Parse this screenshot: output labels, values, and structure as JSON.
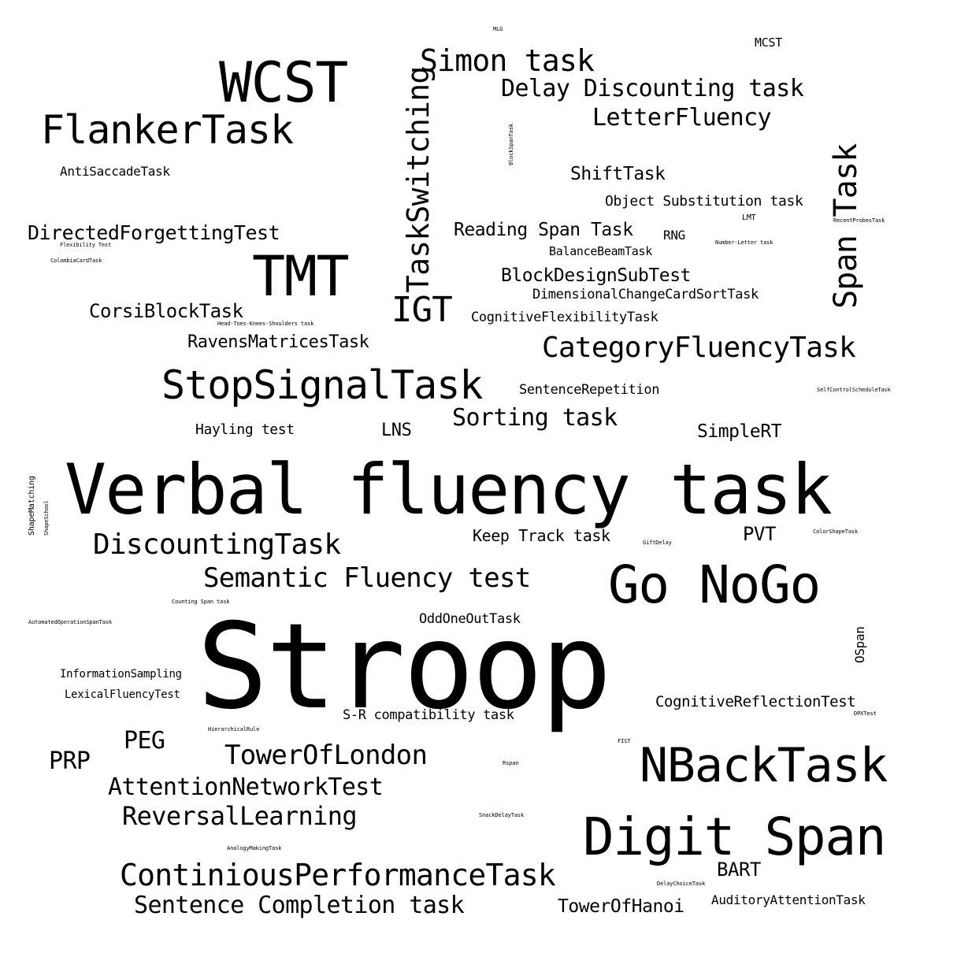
{
  "cloud": {
    "background": "#ffffff",
    "words": [
      {
        "id": "stroop",
        "text": "Stroop"
      },
      {
        "id": "verbal-fluency-task",
        "text": "Verbal fluency task"
      },
      {
        "id": "digit-span",
        "text": "Digit Span"
      },
      {
        "id": "go-nogo",
        "text": "Go NoGo"
      },
      {
        "id": "nbacktask",
        "text": "NBackTask"
      },
      {
        "id": "wcst",
        "text": "WCST"
      },
      {
        "id": "tmt",
        "text": "TMT"
      },
      {
        "id": "flankertask",
        "text": "FlankerTask"
      },
      {
        "id": "stopsignaltask",
        "text": "StopSignalTask"
      },
      {
        "id": "continiousperformancetask",
        "text": "ContiniousPerformanceTask"
      },
      {
        "id": "simon-task",
        "text": "Simon task"
      },
      {
        "id": "taskswitching",
        "text": "TaskSwitching"
      },
      {
        "id": "span-task",
        "text": "Span Task"
      },
      {
        "id": "categoryfluencytask",
        "text": "CategoryFluencyTask"
      },
      {
        "id": "discountingtask",
        "text": "DiscountingTask"
      },
      {
        "id": "igt",
        "text": "IGT"
      },
      {
        "id": "semantic-fluency-test",
        "text": "Semantic Fluency test"
      },
      {
        "id": "toweroflondon",
        "text": "TowerOfLondon"
      },
      {
        "id": "attentionnetworktest",
        "text": "AttentionNetworkTest"
      },
      {
        "id": "reversallearning",
        "text": "ReversalLearning"
      },
      {
        "id": "sentence-completion-task",
        "text": "Sentence Completion task"
      },
      {
        "id": "delay-discounting-task",
        "text": "Delay Discounting task"
      },
      {
        "id": "letterfluency",
        "text": "LetterFluency"
      },
      {
        "id": "sorting-task",
        "text": "Sorting task"
      },
      {
        "id": "peg",
        "text": "PEG"
      },
      {
        "id": "prp",
        "text": "PRP"
      },
      {
        "id": "directedforgettingtest",
        "text": "DirectedForgettingTest"
      },
      {
        "id": "bart",
        "text": "BART"
      },
      {
        "id": "ravensmatricestask",
        "text": "RavensMatricesTask"
      },
      {
        "id": "corsiblocktask",
        "text": "CorsiBlockTask"
      },
      {
        "id": "reading-span-task",
        "text": "Reading Span Task"
      },
      {
        "id": "blockdesignsubtest",
        "text": "BlockDesignSubTest"
      },
      {
        "id": "shifttask",
        "text": "ShiftTask"
      },
      {
        "id": "toweroofhanoi",
        "text": "TowerOfHanoi"
      },
      {
        "id": "simplert",
        "text": "SimpleRT"
      },
      {
        "id": "pvt",
        "text": "PVT"
      },
      {
        "id": "lns",
        "text": "LNS"
      },
      {
        "id": "keep-track-task",
        "text": "Keep Track task"
      },
      {
        "id": "cognitivereflectiontest",
        "text": "CognitiveReflectionTest"
      },
      {
        "id": "object-substitution-task",
        "text": "Object Substitution task"
      },
      {
        "id": "dimensionalchangecardsorttask",
        "text": "DimensionalChangeCardSortTask"
      },
      {
        "id": "cognitiveflexibilitytask",
        "text": "CognitiveFlexibilityTask"
      },
      {
        "id": "sentencerepetition",
        "text": "SentenceRepetition"
      },
      {
        "id": "oddoneouttask",
        "text": "OddOneOutTask"
      },
      {
        "id": "hayling-test",
        "text": "Hayling test"
      },
      {
        "id": "s-r-compatibility-task",
        "text": "S-R compatibility task"
      },
      {
        "id": "auditoryattentiontask",
        "text": "AuditoryAttentionTask"
      },
      {
        "id": "antisaccadetask",
        "text": "AntiSaccadeTask"
      },
      {
        "id": "balancebeamtask",
        "text": "BalanceBeamTask"
      },
      {
        "id": "rng",
        "text": "RNG"
      },
      {
        "id": "informationsampling",
        "text": "InformationSampling"
      },
      {
        "id": "lexicalfluencytest",
        "text": "LexicalFluencyTest"
      },
      {
        "id": "ospan",
        "text": "OSpan"
      },
      {
        "id": "mcst",
        "text": "MCST"
      },
      {
        "id": "lmt",
        "text": "LMT"
      },
      {
        "id": "head-toes-knees-shoulders-task",
        "text": "Head-Toes-Knees-Shoulders task"
      },
      {
        "id": "shapematching",
        "text": "ShapeMatching"
      },
      {
        "id": "shapeschool",
        "text": "ShapeSchool"
      },
      {
        "id": "flexibility-test",
        "text": "Flexibility Test"
      },
      {
        "id": "colombiacardtask",
        "text": "ColombiaCardTask"
      },
      {
        "id": "recentprobestask",
        "text": "RecentProbesTask"
      },
      {
        "id": "number-letter-task",
        "text": "Number-Letter task"
      },
      {
        "id": "selfcontrolschedulefask",
        "text": "SelfControlScheduleTask"
      },
      {
        "id": "blockspantask",
        "text": "BlockSpanTask"
      },
      {
        "id": "colorshapetask",
        "text": "ColorShapeTask"
      },
      {
        "id": "giftdelay",
        "text": "GiftDelay"
      },
      {
        "id": "counting-span-task",
        "text": "Counting Span task"
      },
      {
        "id": "automatedoperationspantask",
        "text": "AutomatedOperationSpanTask"
      },
      {
        "id": "hierarchicalrule",
        "text": "HierarchicalRule"
      },
      {
        "id": "dpxtest",
        "text": "DPXTest"
      },
      {
        "id": "fist",
        "text": "FIST"
      },
      {
        "id": "rspan",
        "text": "Rspan"
      },
      {
        "id": "snackdelaytask",
        "text": "SnackDelayTask"
      },
      {
        "id": "analogymakingtask",
        "text": "AnalogyMakingTask"
      },
      {
        "id": "delaychoicetask",
        "text": "DelayChoiceTask"
      },
      {
        "id": "mlg",
        "text": "MLG"
      }
    ]
  }
}
